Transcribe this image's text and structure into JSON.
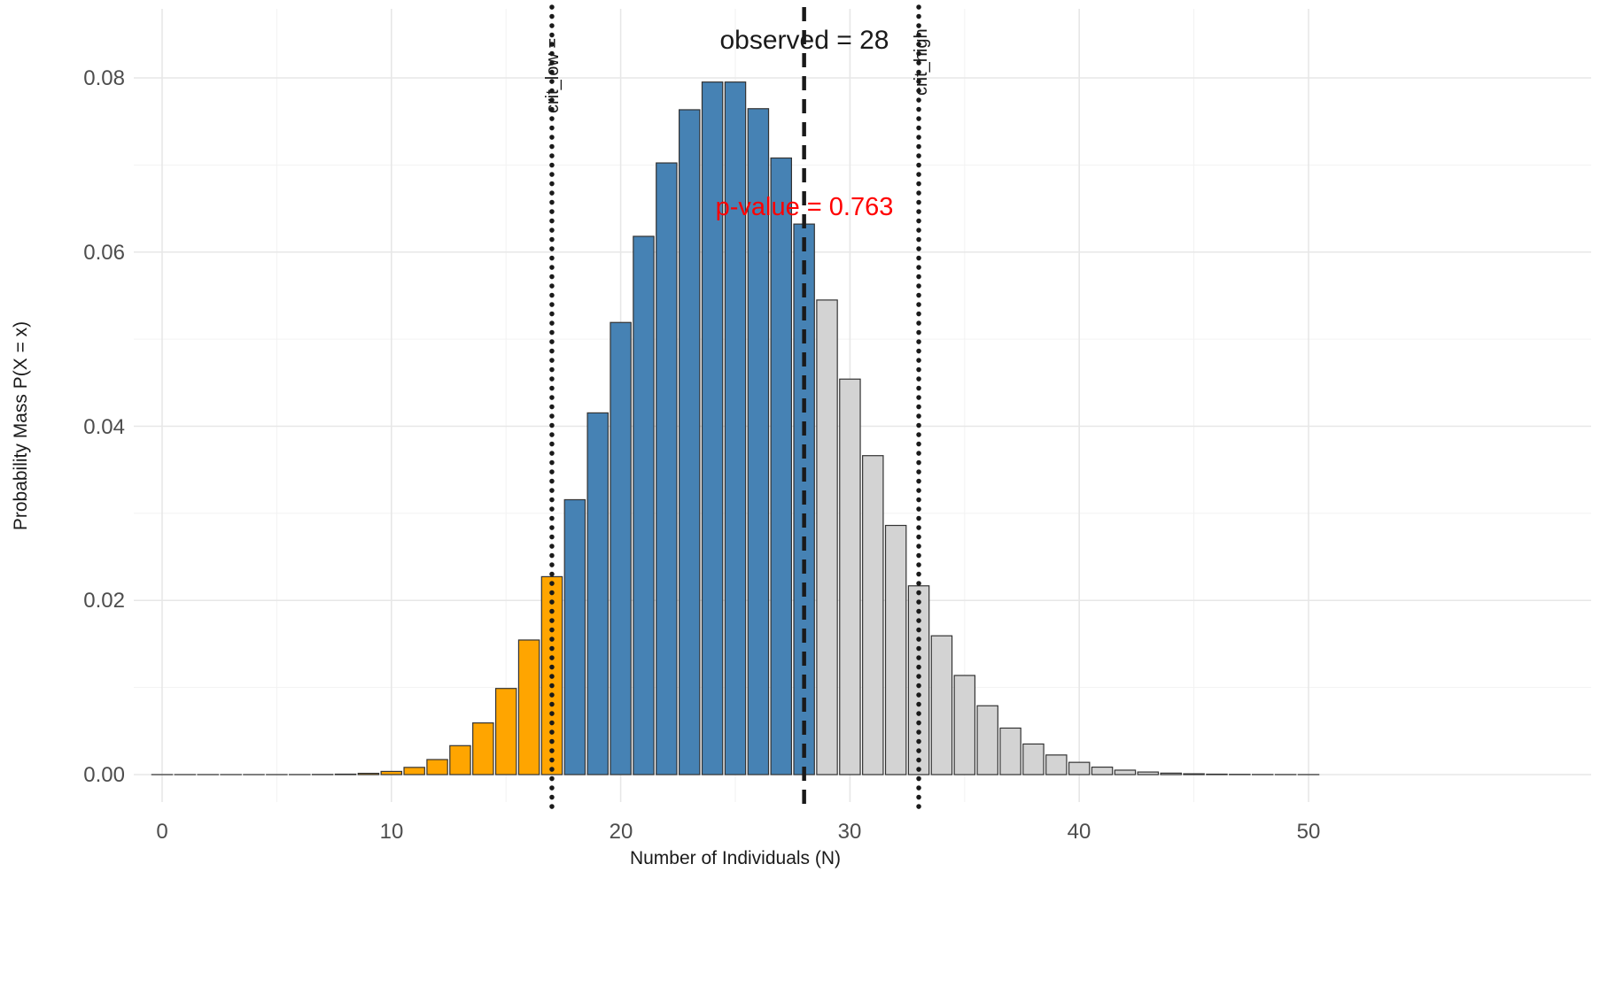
{
  "chart_data": {
    "type": "bar",
    "title": "",
    "xlabel": "Number of Individuals (N)",
    "ylabel": "Probability Mass P(X = x)",
    "x_ticks": [
      0,
      10,
      20,
      30,
      40,
      50
    ],
    "x_tick_labels": [
      "0",
      "10",
      "20",
      "30",
      "40",
      "50"
    ],
    "y_ticks": [
      0.0,
      0.02,
      0.04,
      0.06,
      0.08
    ],
    "y_tick_labels": [
      "0.00",
      "0.02",
      "0.04",
      "0.06",
      "0.08"
    ],
    "ylim": [
      0,
      0.088
    ],
    "grid": true,
    "legend": "none",
    "bar_width": 0.9,
    "x": [
      0,
      1,
      2,
      3,
      4,
      5,
      6,
      7,
      8,
      9,
      10,
      11,
      12,
      13,
      14,
      15,
      16,
      17,
      18,
      19,
      20,
      21,
      22,
      23,
      24,
      25,
      26,
      27,
      28,
      29,
      30,
      31,
      32,
      33,
      34,
      35,
      36,
      37,
      38,
      39,
      40,
      41,
      42,
      43,
      44,
      45,
      46,
      47,
      48,
      49,
      50
    ],
    "values": [
      0.0,
      3e-10,
      4e-09,
      4e-08,
      2.3e-07,
      1.13e-06,
      4.71e-06,
      1.682e-05,
      5.256e-05,
      0.000146,
      0.000365,
      0.00082953,
      0.00172819,
      0.00332344,
      0.00593472,
      0.0098912,
      0.015455,
      0.02272794,
      0.03156659,
      0.04153499,
      0.05191873,
      0.06180801,
      0.07023638,
      0.07634389,
      0.07952488,
      0.07952488,
      0.07646623,
      0.07080206,
      0.06321613,
      0.05449666,
      0.04541388,
      0.0366241,
      0.02861258,
      0.0216762,
      0.01593838,
      0.01138456,
      0.00790594,
      0.00534185,
      0.00351438,
      0.00225281,
      0.001408,
      0.00085854,
      0.00051104,
      0.00029711,
      0.00016881,
      9.379e-05,
      5.097e-05,
      2.711e-05,
      1.412e-05,
      7.2e-06,
      3.6e-06
    ],
    "colors": {
      "lower_tail": "#FFA500",
      "center": "#4682B4",
      "upper_tail": "#D3D3D3",
      "bar_outline": "#333333",
      "line_color": "#1A1A1A",
      "major_grid": "#E7E7E7",
      "minor_grid": "#F2F2F2"
    },
    "bar_segments": [
      {
        "x_min": 0,
        "x_max": 17,
        "color_key": "lower_tail"
      },
      {
        "x_min": 18,
        "x_max": 28,
        "color_key": "center"
      },
      {
        "x_min": 29,
        "x_max": 50,
        "color_key": "upper_tail"
      }
    ],
    "annotations": {
      "crit_low_line": {
        "x": 17,
        "style": "dotted",
        "label": "crit_low ="
      },
      "crit_high_line": {
        "x": 33,
        "style": "dotted",
        "label": "crit_high"
      },
      "observed_line": {
        "x": 28,
        "style": "dashed",
        "label": "observed = 28"
      },
      "p_value_label": {
        "text": "p-value = 0.763",
        "color": "#FF0000"
      }
    }
  }
}
